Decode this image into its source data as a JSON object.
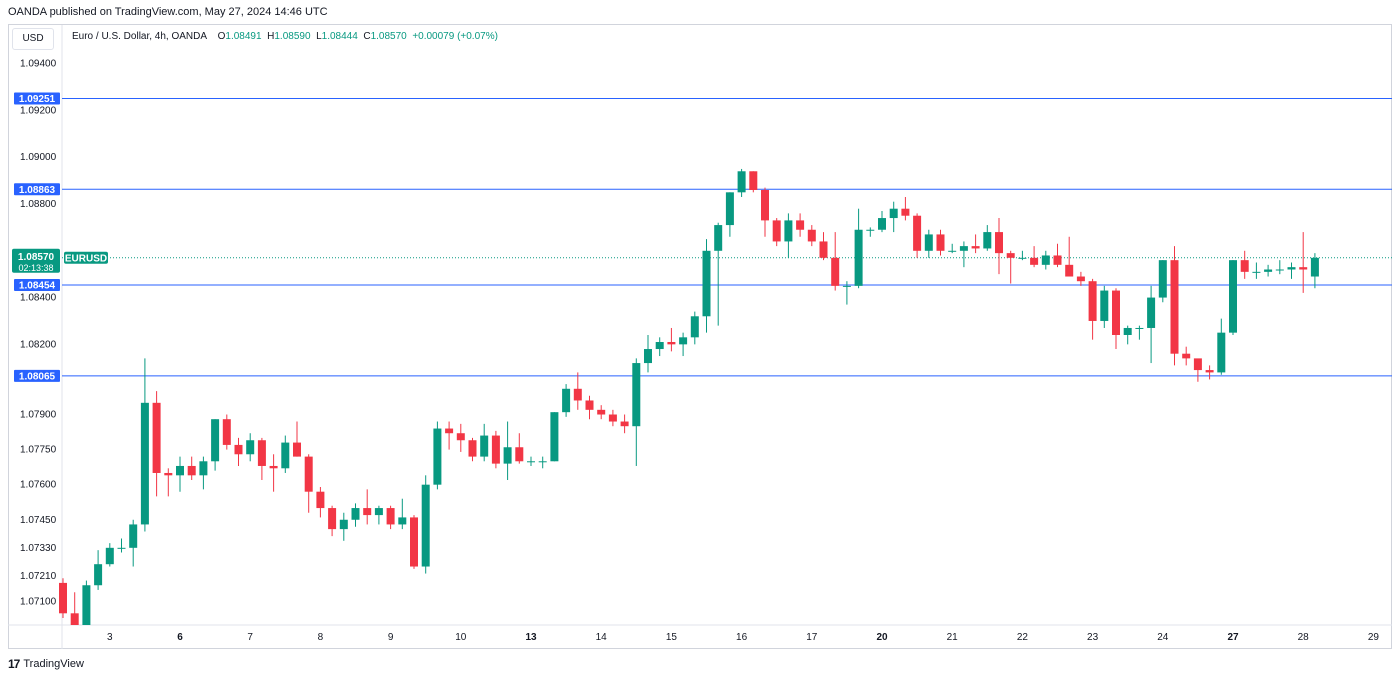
{
  "header": {
    "published": "OANDA published on TradingView.com, May 27, 2024 14:46 UTC",
    "currency": "USD"
  },
  "legend": {
    "symbol": "Euro / U.S. Dollar, 4h, OANDA",
    "o_label": "O",
    "o": "1.08491",
    "h_label": "H",
    "h": "1.08590",
    "l_label": "L",
    "l": "1.08444",
    "c_label": "C",
    "c": "1.08570",
    "change": "+0.00079 (+0.07%)"
  },
  "footer": {
    "logo_text": "TradingView"
  },
  "chart_data": {
    "type": "candlestick",
    "ylim": [
      1.07,
      1.0945
    ],
    "y_ticks": [
      "1.09400",
      "1.09200",
      "1.09000",
      "1.08800",
      "1.08400",
      "1.08200",
      "1.07900",
      "1.07750",
      "1.07600",
      "1.07450",
      "1.07330",
      "1.07210",
      "1.07100"
    ],
    "x_ticks": [
      {
        "label": "3",
        "bar": 4
      },
      {
        "label": "6",
        "bar": 10
      },
      {
        "label": "7",
        "bar": 16
      },
      {
        "label": "8",
        "bar": 22
      },
      {
        "label": "9",
        "bar": 28
      },
      {
        "label": "10",
        "bar": 34
      },
      {
        "label": "13",
        "bar": 40
      },
      {
        "label": "14",
        "bar": 46
      },
      {
        "label": "15",
        "bar": 52
      },
      {
        "label": "16",
        "bar": 58
      },
      {
        "label": "17",
        "bar": 64
      },
      {
        "label": "20",
        "bar": 70
      },
      {
        "label": "21",
        "bar": 76
      },
      {
        "label": "22",
        "bar": 82
      },
      {
        "label": "23",
        "bar": 88
      },
      {
        "label": "24",
        "bar": 94
      },
      {
        "label": "27",
        "bar": 100
      },
      {
        "label": "28",
        "bar": 106
      },
      {
        "label": "29",
        "bar": 112
      }
    ],
    "bold_ticks": [
      "6",
      "13",
      "20",
      "27"
    ],
    "horizontal_lines": [
      {
        "value": 1.09251,
        "label": "1.09251"
      },
      {
        "value": 1.08863,
        "label": "1.08863"
      },
      {
        "value": 1.08454,
        "label": "1.08454"
      },
      {
        "value": 1.08065,
        "label": "1.08065"
      }
    ],
    "current_price": {
      "value": 1.0857,
      "label": "1.08570",
      "countdown": "02:13:38",
      "symbol": "EURUSD"
    },
    "colors": {
      "up": "#089981",
      "down": "#f23645",
      "level_line": "#2962ff"
    },
    "candles": [
      [
        1.0718,
        1.072,
        1.0703,
        1.0705
      ],
      [
        1.0705,
        1.0714,
        1.07,
        1.07
      ],
      [
        1.07,
        1.0719,
        1.07,
        1.0717
      ],
      [
        1.0717,
        1.0732,
        1.0715,
        1.0726
      ],
      [
        1.0726,
        1.0735,
        1.0725,
        1.0733
      ],
      [
        1.0733,
        1.0737,
        1.0731,
        1.0733
      ],
      [
        1.0733,
        1.0745,
        1.0725,
        1.0743
      ],
      [
        1.0743,
        1.0814,
        1.074,
        1.0795
      ],
      [
        1.0795,
        1.08,
        1.0755,
        1.0765
      ],
      [
        1.0765,
        1.0767,
        1.0755,
        1.0764
      ],
      [
        1.0764,
        1.0772,
        1.0757,
        1.0768
      ],
      [
        1.0768,
        1.0772,
        1.0762,
        1.0764
      ],
      [
        1.0764,
        1.0772,
        1.0758,
        1.077
      ],
      [
        1.077,
        1.0788,
        1.0766,
        1.0788
      ],
      [
        1.0788,
        1.079,
        1.0775,
        1.0777
      ],
      [
        1.0777,
        1.078,
        1.0768,
        1.0773
      ],
      [
        1.0773,
        1.0782,
        1.077,
        1.0779
      ],
      [
        1.0779,
        1.078,
        1.0762,
        1.0768
      ],
      [
        1.0768,
        1.0773,
        1.0757,
        1.0767
      ],
      [
        1.0767,
        1.0781,
        1.0765,
        1.0778
      ],
      [
        1.0778,
        1.0787,
        1.0772,
        1.0772
      ],
      [
        1.0772,
        1.0773,
        1.0748,
        1.0757
      ],
      [
        1.0757,
        1.0759,
        1.0746,
        1.075
      ],
      [
        1.075,
        1.0751,
        1.0738,
        1.0741
      ],
      [
        1.0741,
        1.0748,
        1.0736,
        1.0745
      ],
      [
        1.0745,
        1.0752,
        1.0742,
        1.075
      ],
      [
        1.075,
        1.0758,
        1.0743,
        1.0747
      ],
      [
        1.0747,
        1.0751,
        1.0743,
        1.075
      ],
      [
        1.075,
        1.0751,
        1.0741,
        1.0743
      ],
      [
        1.0743,
        1.0754,
        1.0741,
        1.0746
      ],
      [
        1.0746,
        1.0747,
        1.0724,
        1.0725
      ],
      [
        1.0725,
        1.0764,
        1.0722,
        1.076
      ],
      [
        1.076,
        1.0787,
        1.0758,
        1.0784
      ],
      [
        1.0784,
        1.0787,
        1.0775,
        1.0782
      ],
      [
        1.0782,
        1.0786,
        1.0774,
        1.0779
      ],
      [
        1.0779,
        1.078,
        1.077,
        1.0772
      ],
      [
        1.0772,
        1.0786,
        1.077,
        1.0781
      ],
      [
        1.0781,
        1.0783,
        1.0767,
        1.0769
      ],
      [
        1.0769,
        1.0787,
        1.0762,
        1.0776
      ],
      [
        1.0776,
        1.0782,
        1.0769,
        1.077
      ],
      [
        1.077,
        1.0772,
        1.0768,
        1.077
      ],
      [
        1.077,
        1.0772,
        1.0767,
        1.077
      ],
      [
        1.077,
        1.0791,
        1.077,
        1.0791
      ],
      [
        1.0791,
        1.0803,
        1.0789,
        1.0801
      ],
      [
        1.0801,
        1.0808,
        1.0792,
        1.0796
      ],
      [
        1.0796,
        1.0798,
        1.0788,
        1.0792
      ],
      [
        1.0792,
        1.0794,
        1.0788,
        1.079
      ],
      [
        1.079,
        1.0792,
        1.0785,
        1.0787
      ],
      [
        1.0787,
        1.079,
        1.0782,
        1.0785
      ],
      [
        1.0785,
        1.0814,
        1.0768,
        1.0812
      ],
      [
        1.0812,
        1.0824,
        1.0808,
        1.0818
      ],
      [
        1.0818,
        1.0823,
        1.0815,
        1.0821
      ],
      [
        1.0821,
        1.0827,
        1.0817,
        1.082
      ],
      [
        1.082,
        1.0825,
        1.0815,
        1.0823
      ],
      [
        1.0823,
        1.0834,
        1.082,
        1.0832
      ],
      [
        1.0832,
        1.0865,
        1.0825,
        1.086
      ],
      [
        1.086,
        1.0872,
        1.0828,
        1.0871
      ],
      [
        1.0871,
        1.0885,
        1.0866,
        1.0885
      ],
      [
        1.0885,
        1.0895,
        1.0883,
        1.0894
      ],
      [
        1.0894,
        1.0894,
        1.0885,
        1.0886
      ],
      [
        1.0886,
        1.0887,
        1.0866,
        1.0873
      ],
      [
        1.0873,
        1.0874,
        1.0862,
        1.0864
      ],
      [
        1.0864,
        1.0876,
        1.0857,
        1.0873
      ],
      [
        1.0873,
        1.0876,
        1.0866,
        1.0869
      ],
      [
        1.0869,
        1.0871,
        1.0862,
        1.0864
      ],
      [
        1.0864,
        1.0868,
        1.0856,
        1.0857
      ],
      [
        1.0857,
        1.0868,
        1.0843,
        1.0845
      ],
      [
        1.0845,
        1.0847,
        1.0837,
        1.0845
      ],
      [
        1.0845,
        1.0878,
        1.0844,
        1.0869
      ],
      [
        1.0869,
        1.087,
        1.0866,
        1.0869
      ],
      [
        1.0869,
        1.0877,
        1.0868,
        1.0874
      ],
      [
        1.0874,
        1.0881,
        1.0868,
        1.0878
      ],
      [
        1.0878,
        1.0883,
        1.0873,
        1.0875
      ],
      [
        1.0875,
        1.0876,
        1.0857,
        1.086
      ],
      [
        1.086,
        1.0869,
        1.0857,
        1.0867
      ],
      [
        1.0867,
        1.0869,
        1.0858,
        1.086
      ],
      [
        1.086,
        1.0863,
        1.0859,
        1.086
      ],
      [
        1.086,
        1.0864,
        1.0853,
        1.0862
      ],
      [
        1.0862,
        1.0867,
        1.0859,
        1.0861
      ],
      [
        1.0861,
        1.0871,
        1.086,
        1.0868
      ],
      [
        1.0868,
        1.0874,
        1.085,
        1.0859
      ],
      [
        1.0859,
        1.086,
        1.0846,
        1.0857
      ],
      [
        1.0857,
        1.086,
        1.0856,
        1.0857
      ],
      [
        1.0857,
        1.0862,
        1.0853,
        1.0854
      ],
      [
        1.0854,
        1.086,
        1.0852,
        1.0858
      ],
      [
        1.0858,
        1.0863,
        1.0853,
        1.0854
      ],
      [
        1.0854,
        1.0866,
        1.085,
        1.0849
      ],
      [
        1.0849,
        1.0851,
        1.0845,
        1.0847
      ],
      [
        1.0847,
        1.0848,
        1.0822,
        1.083
      ],
      [
        1.083,
        1.0845,
        1.0827,
        1.0843
      ],
      [
        1.0843,
        1.0844,
        1.0818,
        1.0824
      ],
      [
        1.0824,
        1.0828,
        1.082,
        1.0827
      ],
      [
        1.0827,
        1.0828,
        1.0822,
        1.0827
      ],
      [
        1.0827,
        1.0845,
        1.0812,
        1.084
      ],
      [
        1.084,
        1.0856,
        1.0838,
        1.0856
      ],
      [
        1.0856,
        1.0862,
        1.0811,
        1.0816
      ],
      [
        1.0816,
        1.0819,
        1.0811,
        1.0814
      ],
      [
        1.0814,
        1.0813,
        1.0804,
        1.0809
      ],
      [
        1.0809,
        1.0811,
        1.0805,
        1.0808
      ],
      [
        1.0808,
        1.0831,
        1.0807,
        1.0825
      ],
      [
        1.0825,
        1.0856,
        1.0824,
        1.0856
      ],
      [
        1.0856,
        1.086,
        1.0848,
        1.0851
      ],
      [
        1.0851,
        1.0855,
        1.0848,
        1.0851
      ],
      [
        1.0851,
        1.0854,
        1.0849,
        1.0852
      ],
      [
        1.0852,
        1.0856,
        1.085,
        1.0852
      ],
      [
        1.0852,
        1.0855,
        1.0848,
        1.0853
      ],
      [
        1.0853,
        1.0868,
        1.0842,
        1.0852
      ],
      [
        1.0849,
        1.0859,
        1.0844,
        1.0857
      ]
    ]
  }
}
